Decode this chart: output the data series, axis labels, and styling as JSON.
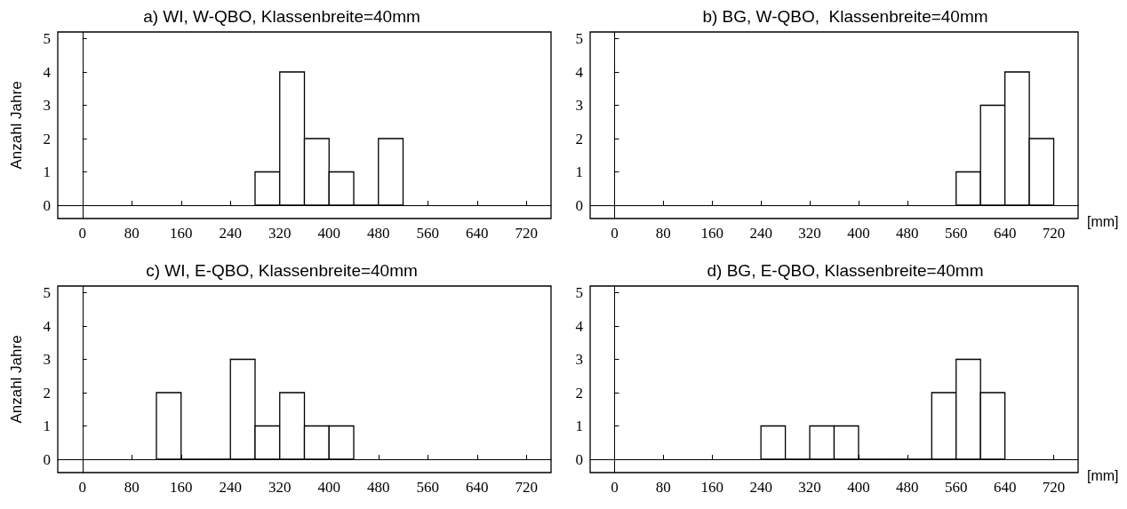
{
  "chart_data": [
    {
      "type": "histogram",
      "title": "a) WI, W-QBO, Klassenbreite=40mm",
      "ylabel": "Anzahl Jahre",
      "color": "#000000",
      "bins": [
        280,
        320,
        360,
        400,
        440,
        480,
        520
      ],
      "values": [
        1,
        4,
        2,
        1,
        0,
        2
      ],
      "xlim": [
        -40,
        760
      ],
      "xticks": [
        0,
        80,
        160,
        240,
        320,
        400,
        480,
        560,
        640,
        720
      ],
      "ylim": [
        -0.4,
        5.2
      ],
      "yticks": [
        0,
        1,
        2,
        3,
        4,
        5
      ]
    },
    {
      "type": "histogram",
      "title": "b) BG, W-QBO,  Klassenbreite=40mm",
      "xlabel": "[mm]",
      "color": "#000000",
      "bins": [
        560,
        600,
        640,
        680,
        720
      ],
      "values": [
        1,
        3,
        4,
        2
      ],
      "xlim": [
        -40,
        760
      ],
      "xticks": [
        0,
        80,
        160,
        240,
        320,
        400,
        480,
        560,
        640,
        720
      ],
      "ylim": [
        -0.4,
        5.2
      ],
      "yticks": [
        0,
        1,
        2,
        3,
        4,
        5
      ]
    },
    {
      "type": "histogram",
      "title": "c) WI, E-QBO, Klassenbreite=40mm",
      "ylabel": "Anzahl Jahre",
      "color": "#000000",
      "bins": [
        120,
        160,
        200,
        240,
        280,
        320,
        360,
        400,
        440
      ],
      "values": [
        2,
        0,
        0,
        3,
        1,
        2,
        1,
        1
      ],
      "xlim": [
        -40,
        760
      ],
      "xticks": [
        0,
        80,
        160,
        240,
        320,
        400,
        480,
        560,
        640,
        720
      ],
      "ylim": [
        -0.4,
        5.2
      ],
      "yticks": [
        0,
        1,
        2,
        3,
        4,
        5
      ]
    },
    {
      "type": "histogram",
      "title": "d) BG, E-QBO, Klassenbreite=40mm",
      "xlabel": "[mm]",
      "color": "#000000",
      "bins": [
        240,
        280,
        320,
        360,
        400,
        440,
        480,
        520,
        560,
        600,
        640
      ],
      "values": [
        1,
        0,
        1,
        1,
        0,
        0,
        0,
        2,
        3,
        2
      ],
      "xlim": [
        -40,
        760
      ],
      "xticks": [
        0,
        80,
        160,
        240,
        320,
        400,
        480,
        560,
        640,
        720
      ],
      "ylim": [
        -0.4,
        5.2
      ],
      "yticks": [
        0,
        1,
        2,
        3,
        4,
        5
      ]
    }
  ]
}
